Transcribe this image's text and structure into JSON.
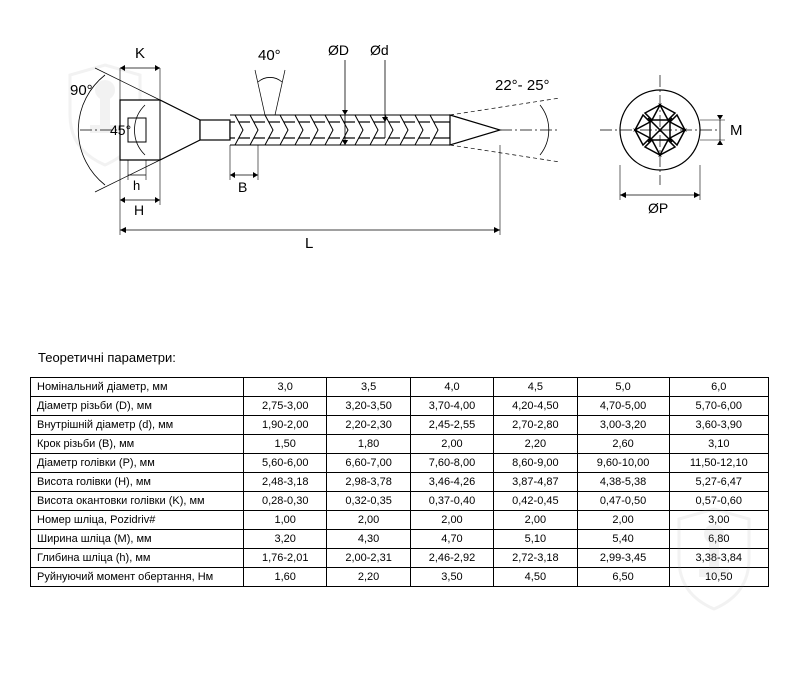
{
  "diagram": {
    "angles": {
      "head": "90°",
      "inner": "45°",
      "thread": "40°",
      "tip": "22°- 25°"
    },
    "labels": {
      "K": "K",
      "OD": "ØD",
      "od": "Ød",
      "h": "h",
      "H": "H",
      "B": "B",
      "L": "L",
      "M": "M",
      "OP": "ØP"
    },
    "colors": {
      "stroke": "#000000",
      "thread_fill": "#ffffff"
    }
  },
  "table": {
    "title": "Теоретичні параметри:",
    "columns": [
      "3,0",
      "3,5",
      "4,0",
      "4,5",
      "5,0",
      "6,0"
    ],
    "rows": [
      {
        "label": "Номінальний діаметр, мм",
        "values": [
          "3,0",
          "3,5",
          "4,0",
          "4,5",
          "5,0",
          "6,0"
        ]
      },
      {
        "label": "Діаметр різьби (D), мм",
        "values": [
          "2,75-3,00",
          "3,20-3,50",
          "3,70-4,00",
          "4,20-4,50",
          "4,70-5,00",
          "5,70-6,00"
        ]
      },
      {
        "label": "Внутрішній діаметр (d), мм",
        "values": [
          "1,90-2,00",
          "2,20-2,30",
          "2,45-2,55",
          "2,70-2,80",
          "3,00-3,20",
          "3,60-3,90"
        ]
      },
      {
        "label": "Крок різьби (B), мм",
        "values": [
          "1,50",
          "1,80",
          "2,00",
          "2,20",
          "2,60",
          "3,10"
        ]
      },
      {
        "label": "Діаметр голівки (P), мм",
        "values": [
          "5,60-6,00",
          "6,60-7,00",
          "7,60-8,00",
          "8,60-9,00",
          "9,60-10,00",
          "11,50-12,10"
        ]
      },
      {
        "label": "Висота голівки (H), мм",
        "values": [
          "2,48-3,18",
          "2,98-3,78",
          "3,46-4,26",
          "3,87-4,87",
          "4,38-5,38",
          "5,27-6,47"
        ]
      },
      {
        "label": "Висота окантовки голівки (K), мм",
        "values": [
          "0,28-0,30",
          "0,32-0,35",
          "0,37-0,40",
          "0,42-0,45",
          "0,47-0,50",
          "0,57-0,60"
        ]
      },
      {
        "label": "Номер шліца, Pozidriv#",
        "values": [
          "1,00",
          "2,00",
          "2,00",
          "2,00",
          "2,00",
          "3,00"
        ]
      },
      {
        "label": "Ширина шліца (M), мм",
        "values": [
          "3,20",
          "4,30",
          "4,70",
          "5,10",
          "5,40",
          "6,80"
        ]
      },
      {
        "label": "Глибина шліца (h), мм",
        "values": [
          "1,76-2,01",
          "2,00-2,31",
          "2,46-2,92",
          "2,72-3,18",
          "2,99-3,45",
          "3,38-3,84"
        ]
      },
      {
        "label": "Руйнуючий момент обертання, Нм",
        "values": [
          "1,60",
          "2,20",
          "3,50",
          "4,50",
          "6,50",
          "10,50"
        ]
      }
    ]
  },
  "watermark": {
    "color": "#cccccc"
  }
}
